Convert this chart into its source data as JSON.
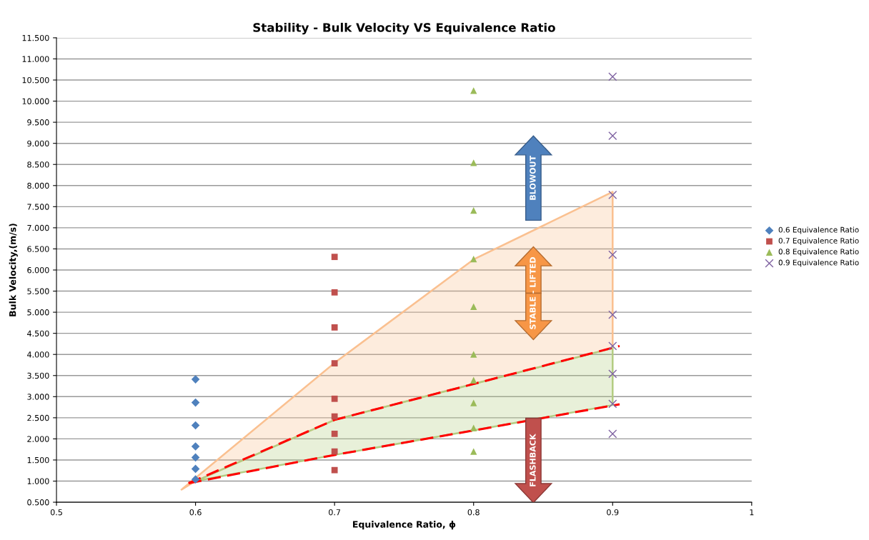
{
  "chart_data": {
    "type": "scatter",
    "title": "Stability - Bulk Velocity VS Equivalence Ratio",
    "xlabel": "Equivalence Ratio, ϕ",
    "ylabel": "Bulk Velocity,(m/s)",
    "xlim": [
      0.5,
      1
    ],
    "xticks": [
      0.5,
      0.6,
      0.7,
      0.8,
      0.9,
      1
    ],
    "ylim": [
      0.5,
      11.5
    ],
    "yticks": [
      {
        "value": 0.5,
        "label": "0.500"
      },
      {
        "value": 1,
        "label": "1.000"
      },
      {
        "value": 1.5,
        "label": "1.500"
      },
      {
        "value": 2,
        "label": "2.000"
      },
      {
        "value": 2.5,
        "label": "2.500"
      },
      {
        "value": 3,
        "label": "3.000"
      },
      {
        "value": 3.5,
        "label": "3.500"
      },
      {
        "value": 4,
        "label": "4.000"
      },
      {
        "value": 4.5,
        "label": "4.500"
      },
      {
        "value": 5,
        "label": "5.000"
      },
      {
        "value": 5.5,
        "label": "5.500"
      },
      {
        "value": 6,
        "label": "6.000"
      },
      {
        "value": 6.5,
        "label": "6.500"
      },
      {
        "value": 7,
        "label": "7.000"
      },
      {
        "value": 7.5,
        "label": "7.500"
      },
      {
        "value": 8,
        "label": "8.000"
      },
      {
        "value": 8.5,
        "label": "8.500"
      },
      {
        "value": 9,
        "label": "9.000"
      },
      {
        "value": 9.5,
        "label": "9.500"
      },
      {
        "value": 10,
        "label": "10.000"
      },
      {
        "value": 10.5,
        "label": "10.500"
      },
      {
        "value": 11,
        "label": "11.000"
      },
      {
        "value": 11.5,
        "label": "11.500"
      }
    ],
    "grid": "y",
    "legend": "right",
    "series": [
      {
        "type": "area",
        "color": "#fac090",
        "x": [
          0.59,
          0.7,
          0.8,
          0.9,
          0.9,
          0.8,
          0.7,
          0.6
        ],
        "values": [
          0.8,
          3.8,
          6.25,
          7.85,
          4.15,
          3.3,
          2.45,
          1.0
        ]
      },
      {
        "type": "area",
        "color": "#b3cc82",
        "x": [
          0.6,
          0.7,
          0.8,
          0.9,
          0.9,
          0.8,
          0.7
        ],
        "values": [
          1.0,
          2.45,
          3.3,
          4.15,
          2.8,
          2.2,
          1.62
        ]
      },
      {
        "type": "line",
        "color": "#ff0000",
        "line_style": "dashed",
        "marker": "none",
        "x": [
          0.595,
          0.7,
          0.8,
          0.905
        ],
        "values": [
          0.95,
          2.45,
          3.3,
          4.2
        ]
      },
      {
        "type": "line",
        "color": "#ff0000",
        "line_style": "dashed",
        "marker": "none",
        "x": [
          0.595,
          0.7,
          0.8,
          0.905
        ],
        "values": [
          0.95,
          1.62,
          2.2,
          2.82
        ]
      },
      {
        "name": "0.6 Equivalence Ratio",
        "color": "#4f81bd",
        "marker": "diamond",
        "x": [
          0.6,
          0.6,
          0.6,
          0.6,
          0.6,
          0.6,
          0.6
        ],
        "values": [
          3.41,
          2.86,
          2.32,
          1.82,
          1.56,
          1.29,
          1.04
        ]
      },
      {
        "name": "0.7 Equivalence Ratio",
        "color": "#c0504d",
        "marker": "square",
        "x": [
          0.7,
          0.7,
          0.7,
          0.7,
          0.7,
          0.7,
          0.7,
          0.7,
          0.7
        ],
        "values": [
          6.31,
          5.47,
          4.64,
          3.79,
          2.95,
          2.53,
          2.12,
          1.7,
          1.26
        ]
      },
      {
        "name": "0.8 Equivalence Ratio",
        "color": "#9bbb59",
        "marker": "triangle",
        "x": [
          0.8,
          0.8,
          0.8,
          0.8,
          0.8,
          0.8,
          0.8,
          0.8,
          0.8,
          0.8
        ],
        "values": [
          10.25,
          8.54,
          7.41,
          6.26,
          5.13,
          4.0,
          3.39,
          2.85,
          2.26,
          1.7
        ]
      },
      {
        "name": "0.9 Equivalence Ratio",
        "color": "#8064a2",
        "marker": "cross",
        "x": [
          0.9,
          0.9,
          0.9,
          0.9,
          0.9,
          0.9,
          0.9,
          0.9,
          0.9
        ],
        "values": [
          10.58,
          9.18,
          7.78,
          6.36,
          4.94,
          4.2,
          3.54,
          2.83,
          2.12
        ]
      }
    ],
    "annotations": [
      "BLOWOUT",
      "STABLE - LIFTED",
      "FLASHBACK"
    ]
  }
}
